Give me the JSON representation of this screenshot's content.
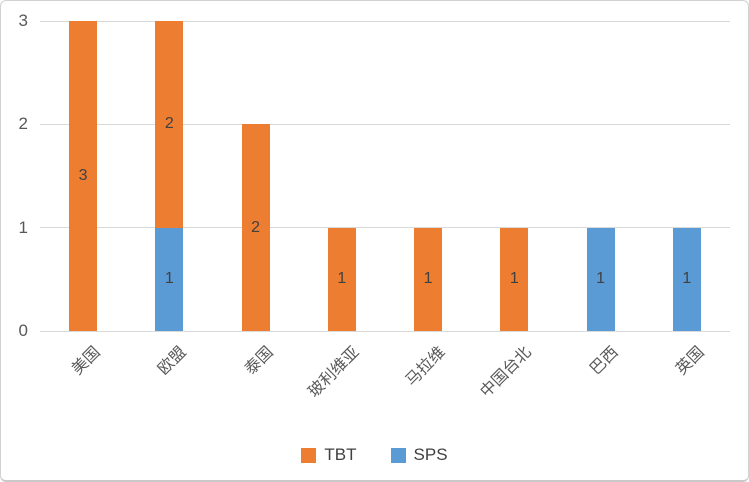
{
  "chart_data": {
    "type": "bar",
    "stacked": true,
    "categories": [
      "美国",
      "欧盟",
      "泰国",
      "玻利维亚",
      "马拉维",
      "中国台北",
      "巴西",
      "英国"
    ],
    "series": [
      {
        "name": "SPS",
        "color": "#5B9BD5",
        "values": [
          0,
          1,
          0,
          0,
          0,
          0,
          1,
          1
        ]
      },
      {
        "name": "TBT",
        "color": "#ED7D31",
        "values": [
          3,
          2,
          2,
          1,
          1,
          1,
          0,
          0
        ]
      }
    ],
    "legend": [
      {
        "label": "TBT",
        "color": "#ED7D31"
      },
      {
        "label": "SPS",
        "color": "#5B9BD5"
      }
    ],
    "title": "",
    "xlabel": "",
    "ylabel": "",
    "y_ticks": [
      0,
      1,
      2,
      3
    ],
    "ylim": [
      0,
      3
    ],
    "grid": true,
    "legend_position": "bottom",
    "data_labels": "center",
    "colors": {
      "gridline": "#d9d9d9",
      "axis_text": "#595959",
      "data_label_text": "#404040",
      "background": "#ffffff",
      "card_border": "#d2d2d2"
    }
  }
}
